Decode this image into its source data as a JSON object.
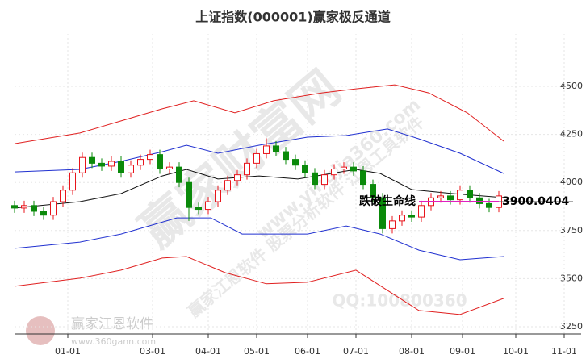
{
  "chart_data": {
    "type": "candlestick",
    "title": "上证指数(000001)赢家极反通道",
    "xlim": [
      -22,
      212
    ],
    "xticks": [
      {
        "value": 0,
        "label": "01-01"
      },
      {
        "value": 35,
        "label": "03-01"
      },
      {
        "value": 58,
        "label": "04-01"
      },
      {
        "value": 78,
        "label": "05-01"
      },
      {
        "value": 99,
        "label": "06-01"
      },
      {
        "value": 119,
        "label": "07-01"
      },
      {
        "value": 142,
        "label": "08-01"
      },
      {
        "value": 163,
        "label": "09-01"
      },
      {
        "value": 185,
        "label": "10-01"
      },
      {
        "value": 205,
        "label": "11-01"
      }
    ],
    "ylim": [
      3212,
      4647
    ],
    "yticks": [
      3250,
      3500,
      3750,
      4000,
      4250,
      4500
    ],
    "up_color": "#e8141b",
    "down_color": "#0a8a0a",
    "x": [
      -22,
      -18,
      -14,
      -10,
      -6,
      -2,
      2,
      6,
      10,
      14,
      18,
      22,
      26,
      30,
      34,
      38,
      42,
      46,
      50,
      54,
      58,
      62,
      66,
      70,
      74,
      78,
      82,
      86,
      90,
      94,
      98,
      102,
      106,
      110,
      114,
      118,
      122,
      126,
      130,
      134,
      138,
      142,
      146,
      150,
      154,
      158,
      162,
      166,
      170,
      174,
      178
    ],
    "open": [
      3880,
      3867,
      3880,
      3850,
      3830,
      3900,
      3960,
      4050,
      4130,
      4100,
      4085,
      4110,
      4050,
      4090,
      4120,
      4145,
      4070,
      4080,
      4000,
      3870,
      3860,
      3900,
      3960,
      4010,
      4040,
      4100,
      4150,
      4190,
      4160,
      4120,
      4090,
      4050,
      3990,
      4040,
      4070,
      4080,
      4060,
      3990,
      3920,
      3760,
      3800,
      3830,
      3820,
      3880,
      3920,
      3930,
      3910,
      3960,
      3920,
      3890,
      3870
    ],
    "high": [
      3905,
      3905,
      3905,
      3875,
      3925,
      3985,
      4075,
      4155,
      4155,
      4125,
      4135,
      4135,
      4115,
      4145,
      4170,
      4170,
      4105,
      4105,
      4025,
      3895,
      3925,
      3985,
      4035,
      4065,
      4125,
      4175,
      4230,
      4215,
      4185,
      4145,
      4115,
      4075,
      4065,
      4095,
      4105,
      4105,
      4085,
      4015,
      3945,
      3825,
      3855,
      3855,
      3905,
      3945,
      3955,
      3955,
      3985,
      3985,
      3945,
      3915,
      3955
    ],
    "low": [
      3842,
      3842,
      3825,
      3805,
      3805,
      3875,
      3935,
      4025,
      4075,
      4060,
      4060,
      4025,
      4025,
      4065,
      4095,
      4045,
      4045,
      3975,
      3800,
      3835,
      3835,
      3875,
      3935,
      3985,
      4015,
      4075,
      4125,
      4135,
      4095,
      4065,
      4025,
      3965,
      3965,
      4015,
      4045,
      4035,
      3965,
      3895,
      3735,
      3735,
      3775,
      3795,
      3795,
      3855,
      3895,
      3885,
      3885,
      3895,
      3865,
      3845,
      3845
    ],
    "close": [
      3867,
      3880,
      3850,
      3830,
      3900,
      3960,
      4050,
      4130,
      4100,
      4085,
      4110,
      4050,
      4090,
      4120,
      4145,
      4070,
      4080,
      4000,
      3870,
      3860,
      3900,
      3960,
      4010,
      4040,
      4100,
      4150,
      4190,
      4160,
      4120,
      4090,
      4050,
      3990,
      4040,
      4070,
      4080,
      4060,
      3990,
      3920,
      3760,
      3800,
      3830,
      3820,
      3880,
      3920,
      3930,
      3910,
      3960,
      3920,
      3890,
      3870,
      3930
    ],
    "lines": [
      {
        "color": "#e02020",
        "x": [
          -22,
          5,
          22,
          39,
          52,
          69,
          85,
          105,
          119,
          135,
          149,
          165,
          180
        ],
        "values": [
          4202,
          4257,
          4320,
          4383,
          4425,
          4362,
          4425,
          4466,
          4487,
          4508,
          4466,
          4362,
          4215
        ]
      },
      {
        "color": "#2030d0",
        "x": [
          -22,
          5,
          22,
          39,
          49,
          62,
          79,
          99,
          115,
          132,
          145,
          162,
          180
        ],
        "values": [
          4055,
          4068,
          4110,
          4160,
          4194,
          4152,
          4194,
          4236,
          4244,
          4278,
          4227,
          4152,
          4047
        ]
      },
      {
        "color": "#111111",
        "x": [
          -22,
          5,
          22,
          39,
          49,
          62,
          79,
          95,
          119,
          129,
          142,
          159,
          180
        ],
        "values": [
          3867,
          3900,
          3942,
          4034,
          4068,
          4018,
          4034,
          4018,
          4068,
          4047,
          3963,
          3942,
          3921
        ]
      },
      {
        "color": "#2030d0",
        "x": [
          -22,
          5,
          22,
          45,
          59,
          72,
          85,
          99,
          115,
          129,
          145,
          162,
          180
        ],
        "values": [
          3657,
          3690,
          3732,
          3816,
          3816,
          3732,
          3732,
          3732,
          3774,
          3732,
          3648,
          3598,
          3615
        ]
      },
      {
        "color": "#e02020",
        "x": [
          -22,
          5,
          22,
          39,
          49,
          65,
          82,
          99,
          119,
          132,
          145,
          162,
          180
        ],
        "values": [
          3460,
          3502,
          3544,
          3607,
          3615,
          3531,
          3473,
          3481,
          3544,
          3439,
          3334,
          3313,
          3397
        ]
      }
    ],
    "annotation": "跌破生命线",
    "support_level": 3900.0404,
    "support_color": "#e020c0",
    "support_xrange": [
      145,
      178
    ],
    "watermarks": [
      "赢家财富网",
      "赢家江恩软件 股票分析软件 江恩工具软件",
      "www.yingjia360.com",
      "QQ:100800360",
      "赢家江恩软件",
      "www.360gann.com"
    ]
  }
}
